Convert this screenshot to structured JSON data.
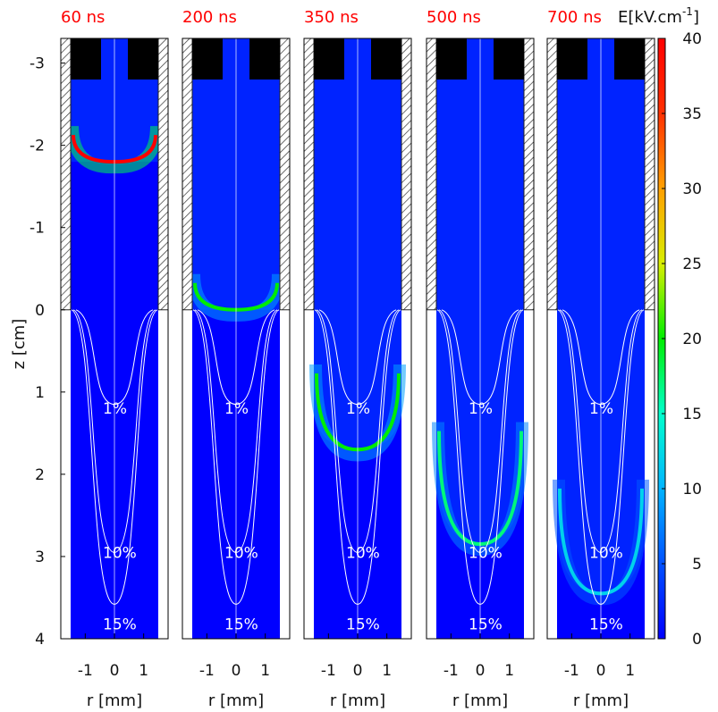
{
  "chart_data": {
    "type": "heatmap",
    "panels": [
      {
        "time_label": "60 ns",
        "front_z_cm": -1.8,
        "front_tip_z_cm": -1.8,
        "front_max_kv_cm": 40
      },
      {
        "time_label": "200 ns",
        "front_z_cm": 0.0,
        "front_tip_z_cm": 0.0,
        "front_max_kv_cm": 20
      },
      {
        "time_label": "350 ns",
        "front_z_cm": 1.1,
        "front_tip_z_cm": 1.7,
        "front_max_kv_cm": 20
      },
      {
        "time_label": "500 ns",
        "front_z_cm": 1.8,
        "front_tip_z_cm": 2.85,
        "front_max_kv_cm": 17
      },
      {
        "time_label": "700 ns",
        "front_z_cm": 2.5,
        "front_tip_z_cm": 3.45,
        "front_max_kv_cm": 12
      }
    ],
    "x_axis": {
      "label": "r [mm]",
      "ticks": [
        "-1",
        "0",
        "1"
      ],
      "range": [
        -1.5,
        1.5
      ]
    },
    "y_axis": {
      "label": "z [cm]",
      "ticks": [
        "-3",
        "-2",
        "-1",
        "0",
        "1",
        "2",
        "3",
        "4"
      ],
      "range": [
        -3.3,
        4.0
      ],
      "inverted": true
    },
    "colorbar": {
      "label_prefix": "E[kV.cm",
      "label_exp": "-1",
      "label_suffix": "]",
      "range": [
        0,
        40
      ],
      "ticks": [
        "0",
        "5",
        "10",
        "15",
        "20",
        "25",
        "30",
        "35",
        "40"
      ],
      "colors": [
        "#0000ff",
        "#0050ff",
        "#00b4ff",
        "#00ffcc",
        "#00ee00",
        "#d8ee00",
        "#ffa000",
        "#ff3000",
        "#ff0000"
      ]
    },
    "contours": [
      {
        "label": "1%",
        "tip_z_cm": 1.15,
        "label_z_cm": 1.2
      },
      {
        "label": "10%",
        "tip_z_cm": 2.95,
        "label_z_cm": 2.95
      },
      {
        "label": "15%",
        "tip_z_cm": 3.58,
        "label_z_cm": 3.82
      }
    ],
    "tube_end_z_cm": 0.0,
    "grid": false
  }
}
